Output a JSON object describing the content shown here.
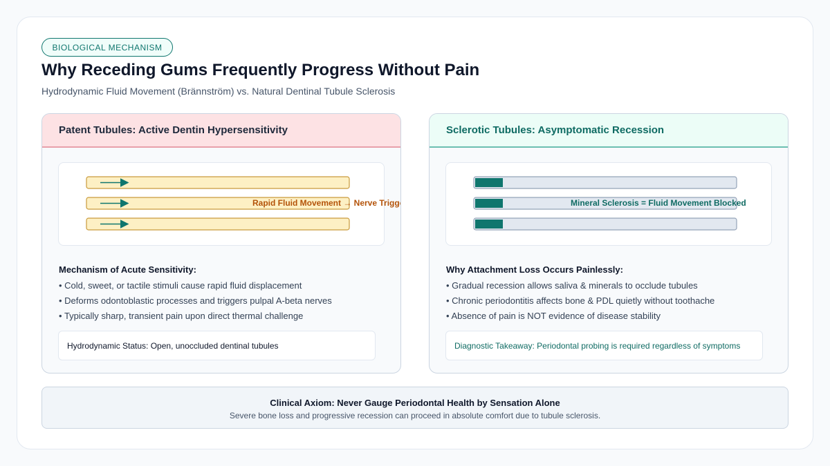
{
  "badge": "BIOLOGICAL MECHANISM",
  "header": {
    "title": "Why Receding Gums Frequently Progress Without Pain",
    "subtitle": "Hydrodynamic Fluid Movement (Brännström) vs. Natural Dentinal Tubule Sclerosis"
  },
  "panels": [
    {
      "title": "Patent Tubules: Active Dentin Hypersensitivity",
      "diagram_label": "Rapid Fluid Movement → Nerve Trigger",
      "heading": "Mechanism of Acute Sensitivity:",
      "bullets": [
        "Cold, sweet, or tactile stimuli cause rapid fluid displacement",
        "Deforms odontoblastic processes and triggers pulpal A-beta nerves",
        "Typically sharp, transient pain upon direct thermal challenge"
      ],
      "status": "Hydrodynamic Status: Open, unoccluded dentinal tubules"
    },
    {
      "title": "Sclerotic Tubules: Asymptomatic Recession",
      "diagram_label": "Mineral Sclerosis = Fluid Movement Blocked",
      "heading": "Why Attachment Loss Occurs Painlessly:",
      "bullets": [
        "Gradual recession allows saliva & minerals to occlude tubules",
        "Chronic periodontitis affects bone & PDL quietly without toothache",
        "Absence of pain is NOT evidence of disease stability"
      ],
      "status": "Diagnostic Takeaway: Periodontal probing is required regardless of symptoms"
    }
  ],
  "footer": {
    "title": "Clinical Axiom: Never Gauge Periodontal Health by Sensation Alone",
    "text": "Severe bone loss and progressive recession can proceed in absolute comfort due to tubule sclerosis."
  }
}
